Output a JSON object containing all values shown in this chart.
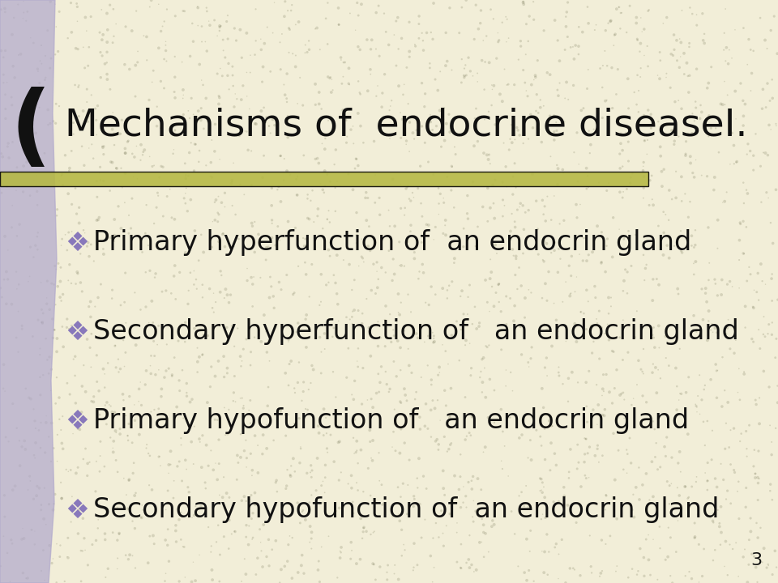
{
  "title": "Mechanisms of  endocrine diseaseⅠ.",
  "background_color": "#f2eed8",
  "left_bar_color": "#b0a8cc",
  "divider_color": "#b5b842",
  "text_color": "#111111",
  "bullet_items": [
    "Primary hyperfunction of  an endocrin gland",
    "Secondary hyperfunction of   an endocrin gland",
    "Primary hypofunction of   an endocrin gland",
    "Secondary hypofunction of  an endocrin gland"
  ],
  "page_number": "3",
  "title_fontsize": 34,
  "bullet_fontsize": 24,
  "page_num_fontsize": 16,
  "noise_color": "#555533",
  "noise_alpha": 0.18,
  "noise_count": 3000
}
